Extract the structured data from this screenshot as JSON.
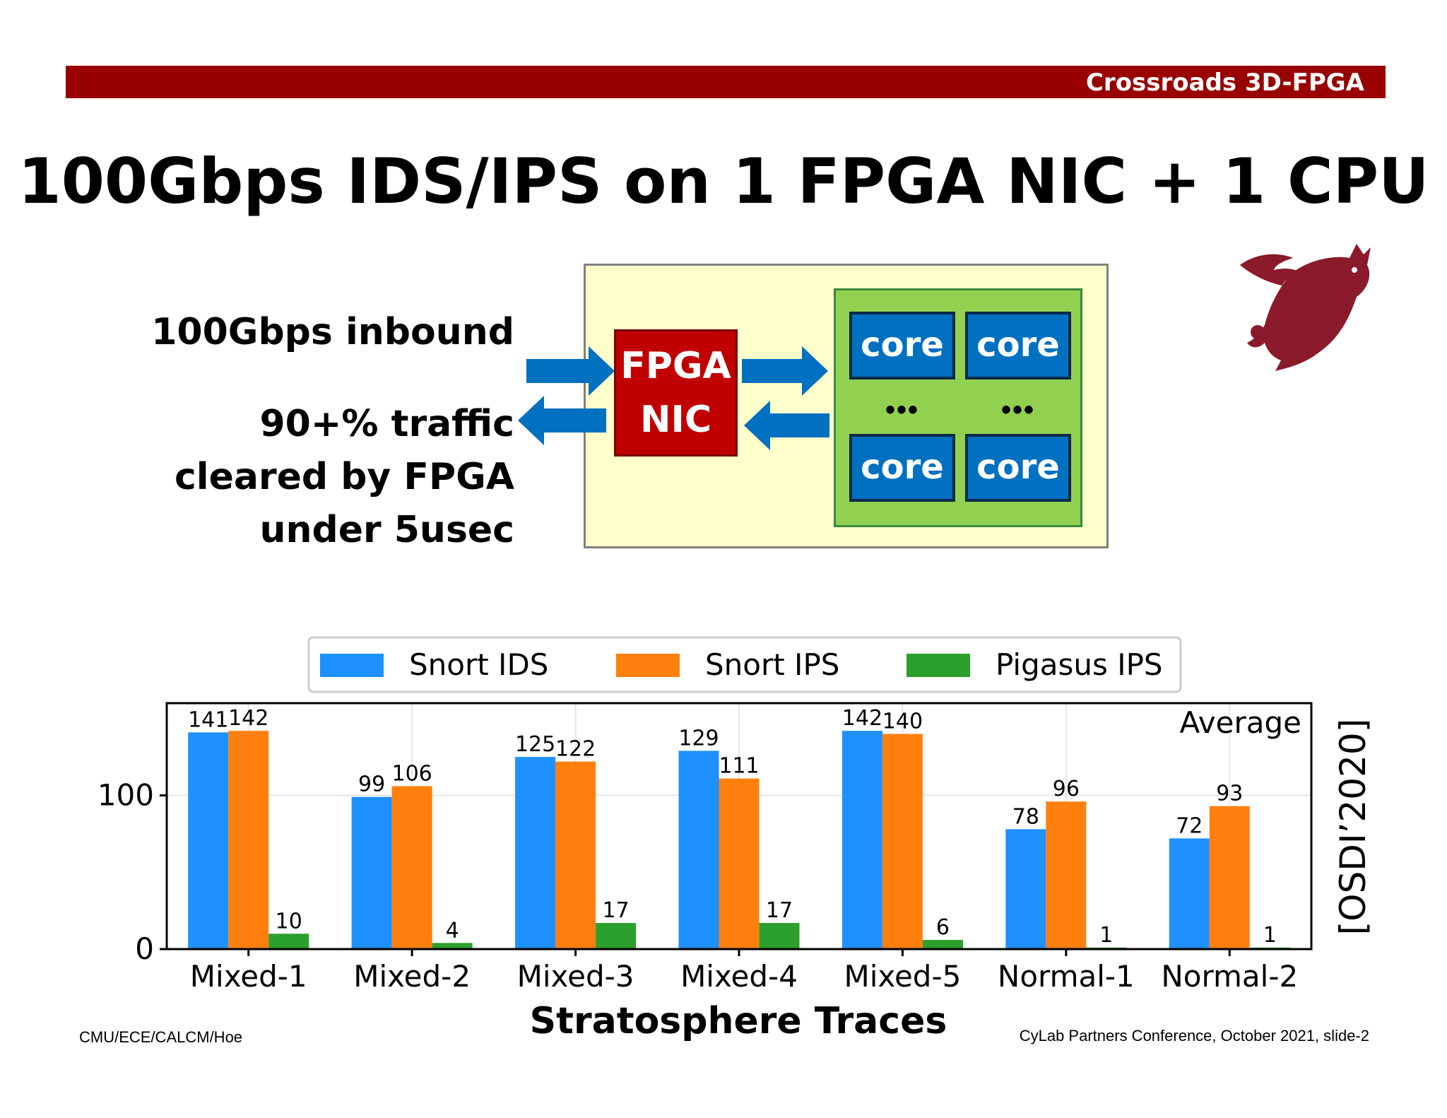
{
  "header": {
    "label": "Crossroads 3D-FPGA"
  },
  "title": "100Gbps IDS/IPS on 1 FPGA NIC + 1 CPU",
  "diagram": {
    "inbound_text": "100Gbps inbound",
    "cleared_lines": [
      "90+% traffic",
      "cleared by FPGA",
      "under 5usec"
    ],
    "nic_lines": [
      "FPGA",
      "NIC"
    ],
    "cores": [
      "core",
      "core",
      "core",
      "core"
    ],
    "dots": [
      "•••",
      "•••"
    ]
  },
  "logo_color": "#8b1a2b",
  "chart_data": {
    "type": "bar",
    "categories": [
      "Mixed-1",
      "Mixed-2",
      "Mixed-3",
      "Mixed-4",
      "Mixed-5",
      "Normal-1",
      "Normal-2"
    ],
    "series": [
      {
        "name": "Snort IDS",
        "color": "#1e90ff",
        "values": [
          141,
          99,
          125,
          129,
          142,
          78,
          72
        ]
      },
      {
        "name": "Snort IPS",
        "color": "#ff7f0e",
        "values": [
          142,
          106,
          122,
          111,
          140,
          96,
          93
        ]
      },
      {
        "name": "Pigasus IPS",
        "color": "#2ca02c",
        "values": [
          10,
          4,
          17,
          17,
          6,
          1,
          1
        ]
      }
    ],
    "xlabel": "Stratosphere Traces",
    "ylabel": "",
    "ylim": [
      0,
      160
    ],
    "yticks": [
      0,
      100
    ],
    "annotation": "Average",
    "side_label": "[OSDI’2020]",
    "legend_position": "top",
    "grid": true
  },
  "footer": {
    "left": "CMU/ECE/CALCM/Hoe",
    "right": "CyLab Partners Conference, October 2021, slide-2"
  }
}
